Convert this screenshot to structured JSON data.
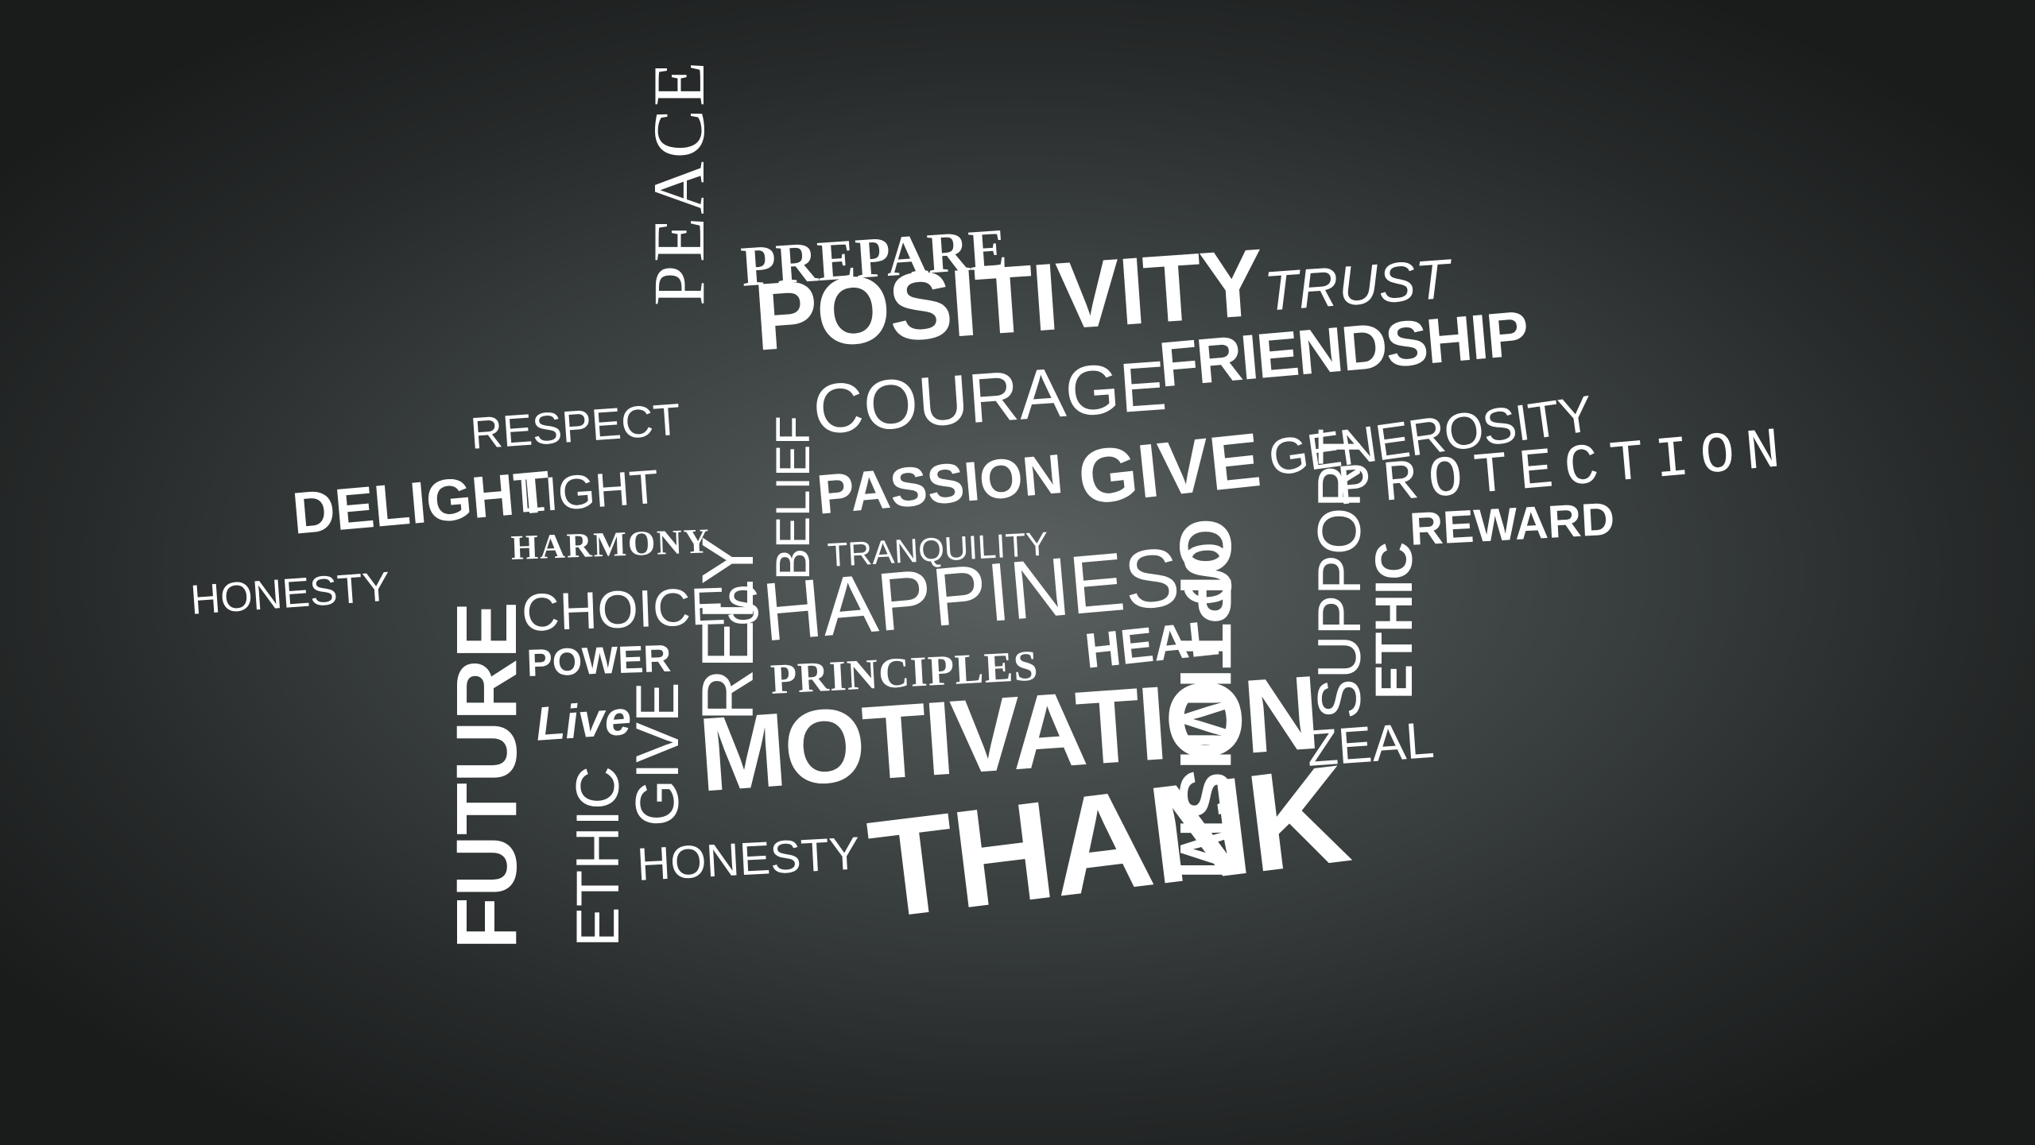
{
  "words": {
    "peace": "PEACE",
    "prepare": "PREPARE",
    "positivity": "POSITIVITY",
    "trust": "TRUST",
    "friendship": "FRIENDSHIP",
    "courage": "COURAGE",
    "respect": "RESPECT",
    "belief": "BELIEF",
    "generosity": "GENEROSITY",
    "protection": "PROTECTION",
    "delight": "DELIGHT",
    "light": "LIGHT",
    "passion": "PASSION",
    "give_top": "GIVE",
    "harmony": "HARMONY",
    "tranquility": "TRANQUILITY",
    "reward": "REWARD",
    "honesty_left": "HONESTY",
    "future": "FUTURE",
    "choices": "CHOICES",
    "happiness": "HAPPINESS",
    "support": "SUPPORT",
    "ethic_right": "ETHIC",
    "optimism": "OPTIMISM",
    "power": "POWER",
    "principles": "PRINCIPLES",
    "heal": "HEAL",
    "rely": "RELY",
    "live": "Live",
    "give_left": "GIVE",
    "motivation": "MOTIVATION",
    "zeal": "ZEAL",
    "ethic_left": "ETHIC",
    "honesty_bottom": "HONESTY",
    "thank": "THANK"
  },
  "colors": {
    "text": "#ffffff",
    "background_center": "#5b6161",
    "background_edge": "#1a1c1c"
  }
}
